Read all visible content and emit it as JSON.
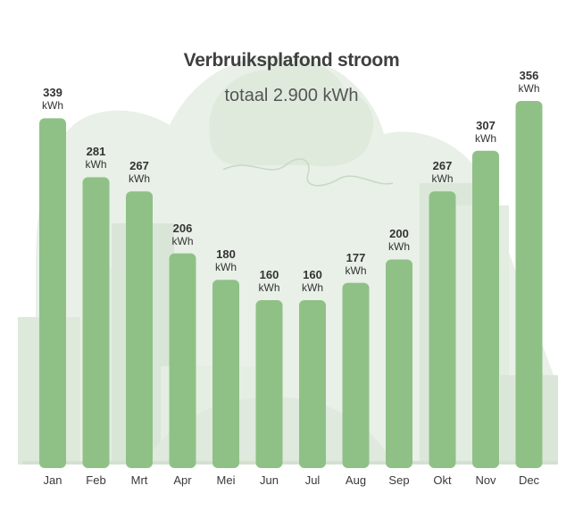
{
  "chart_data": {
    "type": "bar",
    "title": "Verbruiksplafond stroom",
    "subtitle": "totaal 2.900 kWh",
    "categories": [
      "Jan",
      "Feb",
      "Mrt",
      "Apr",
      "Mei",
      "Jun",
      "Jul",
      "Aug",
      "Sep",
      "Okt",
      "Nov",
      "Dec"
    ],
    "values": [
      339,
      281,
      267,
      206,
      180,
      160,
      160,
      177,
      200,
      267,
      307,
      356
    ],
    "value_labels": [
      "339",
      "281",
      "267",
      "206",
      "180",
      "160",
      "160",
      "177",
      "200",
      "267",
      "307",
      "356"
    ],
    "unit": "kWh",
    "ylim": [
      0,
      356
    ],
    "grid": false,
    "legend": "none",
    "colors": {
      "bar": "#8fc187",
      "background_shapes": "#e6efe5",
      "text": "#333333"
    }
  }
}
